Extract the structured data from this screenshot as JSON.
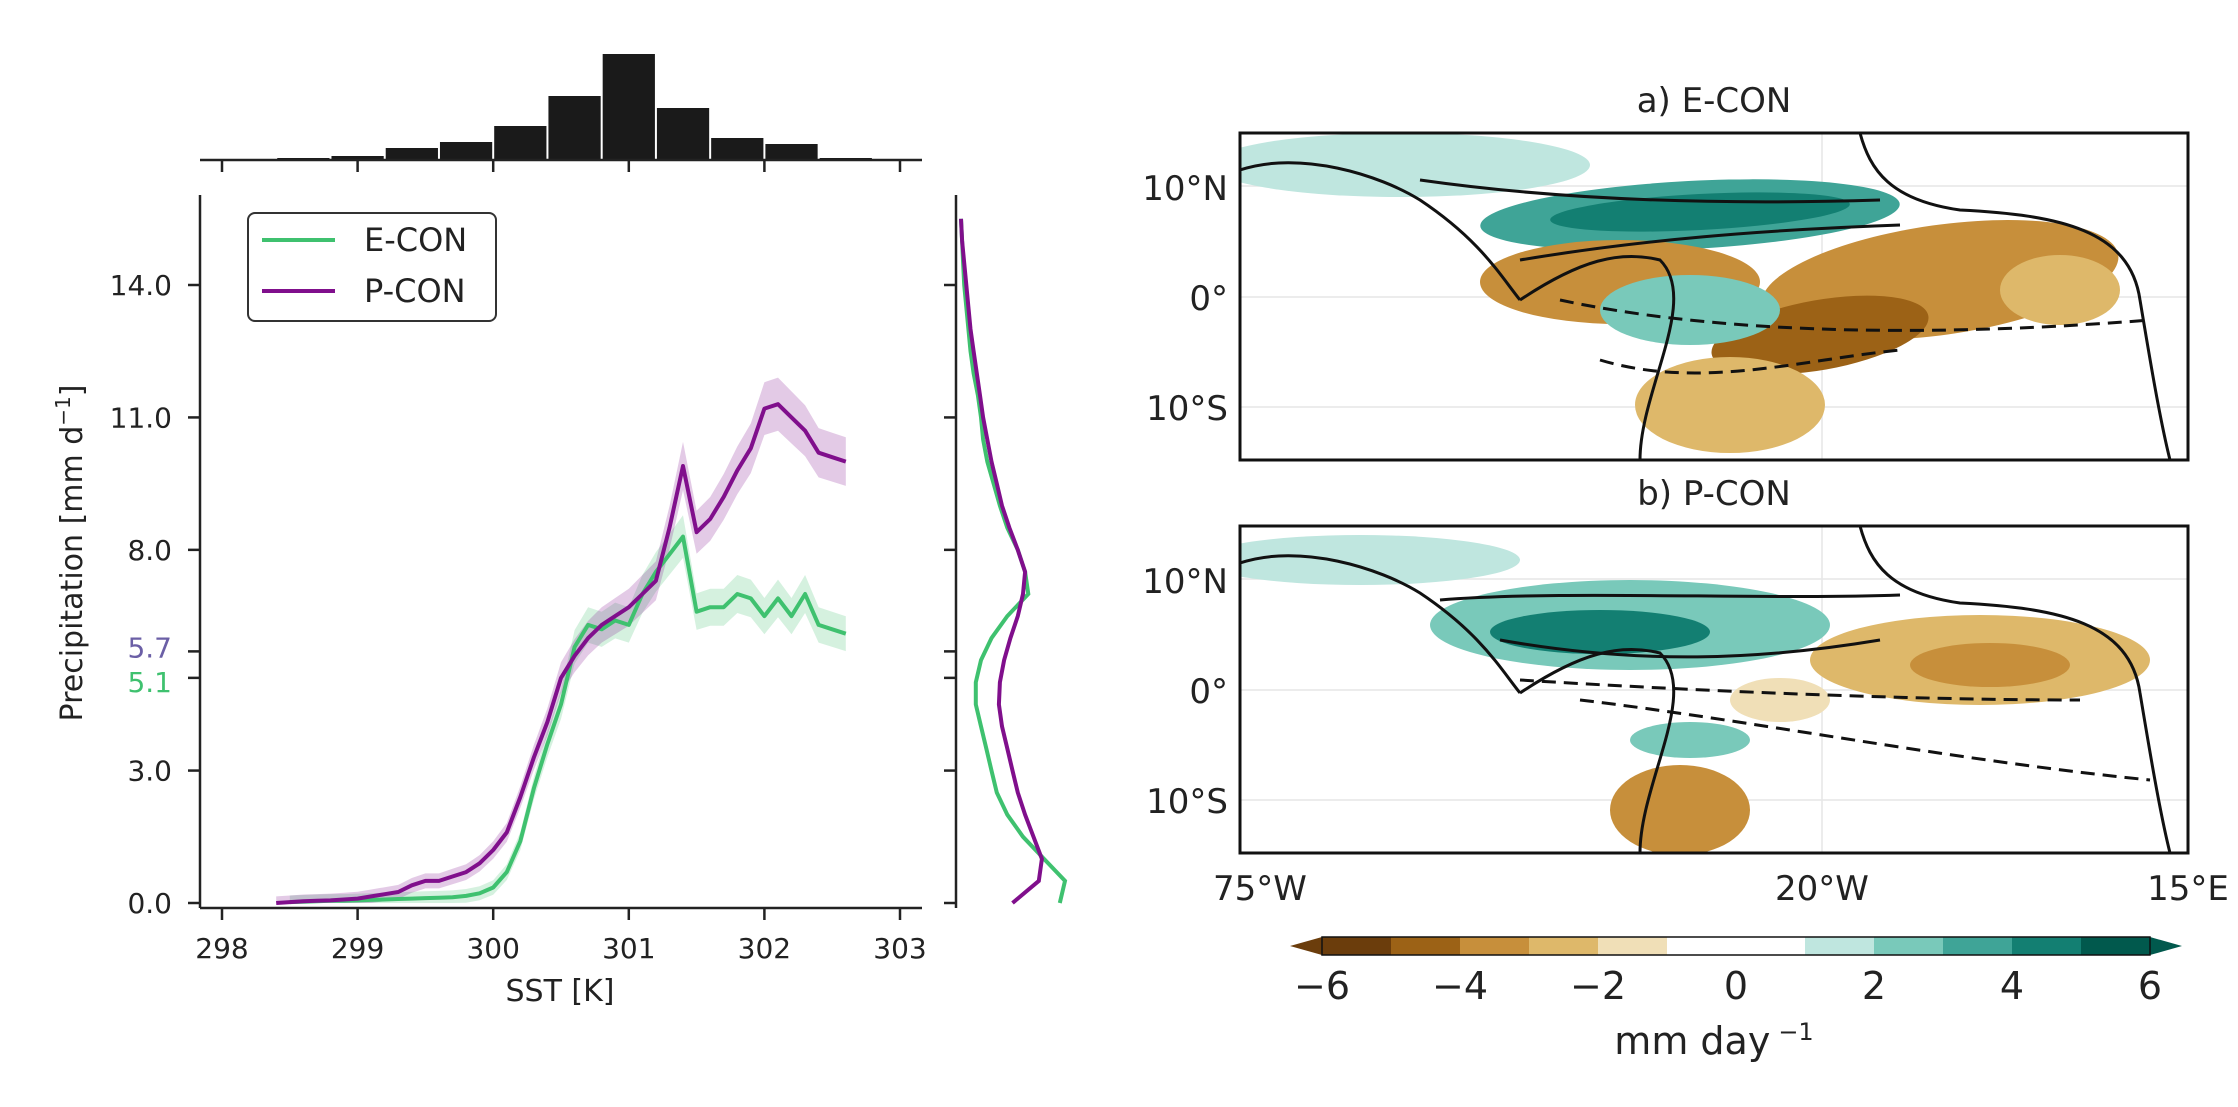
{
  "chart_data": [
    {
      "type": "line",
      "xlabel": "SST [K]",
      "ylabel": "Precipitation [mm d",
      "ylabel_sup": "−1",
      "ylabel_tail": "]",
      "xlim": [
        297.9,
        303.1
      ],
      "ylim": [
        -0.1,
        15.8
      ],
      "xticks": [
        "298",
        "299",
        "300",
        "301",
        "302",
        "303"
      ],
      "xtick_values": [
        298,
        299,
        300,
        301,
        302,
        303
      ],
      "yticks": [
        "0.0",
        "3.0",
        "8.0",
        "11.0",
        "14.0"
      ],
      "ytick_values": [
        0,
        3,
        8,
        11,
        14
      ],
      "mean_annotations": [
        {
          "label": "5.7",
          "value": 5.7,
          "color": "#6b5fa6"
        },
        {
          "label": "5.1",
          "value": 5.1,
          "color": "#3fc16f"
        }
      ],
      "legend_position": "top-left",
      "series": [
        {
          "name": "E-CON",
          "color": "#3fc16f",
          "x": [
            298.5,
            298.6,
            298.7,
            298.8,
            298.9,
            299.0,
            299.1,
            299.2,
            299.3,
            299.4,
            299.5,
            299.6,
            299.7,
            299.8,
            299.9,
            300.0,
            300.1,
            300.2,
            300.3,
            300.4,
            300.5,
            300.6,
            300.7,
            300.8,
            300.9,
            301.0,
            301.1,
            301.2,
            301.3,
            301.4,
            301.5,
            301.6,
            301.7,
            301.8,
            301.9,
            302.0,
            302.1,
            302.2,
            302.3,
            302.4,
            302.5,
            302.6
          ],
          "y": [
            0.02,
            0.03,
            0.04,
            0.05,
            0.05,
            0.06,
            0.07,
            0.08,
            0.09,
            0.1,
            0.11,
            0.12,
            0.13,
            0.16,
            0.22,
            0.35,
            0.7,
            1.4,
            2.6,
            3.6,
            4.5,
            5.8,
            6.3,
            6.2,
            6.4,
            6.3,
            7.0,
            7.5,
            7.9,
            8.3,
            6.6,
            6.7,
            6.7,
            7.0,
            6.9,
            6.5,
            6.9,
            6.5,
            7.0,
            6.3,
            6.2,
            6.1
          ]
        },
        {
          "name": "P-CON",
          "color": "#800f8c",
          "x": [
            298.4,
            298.5,
            298.6,
            298.7,
            298.8,
            298.9,
            299.0,
            299.1,
            299.2,
            299.3,
            299.4,
            299.5,
            299.6,
            299.7,
            299.8,
            299.9,
            300.0,
            300.1,
            300.2,
            300.3,
            300.4,
            300.5,
            300.6,
            300.7,
            300.8,
            300.9,
            301.0,
            301.1,
            301.2,
            301.3,
            301.4,
            301.5,
            301.6,
            301.7,
            301.8,
            301.9,
            302.0,
            302.1,
            302.2,
            302.3,
            302.4,
            302.5,
            302.6
          ],
          "y": [
            0.0,
            0.02,
            0.04,
            0.05,
            0.06,
            0.08,
            0.1,
            0.15,
            0.2,
            0.25,
            0.4,
            0.5,
            0.5,
            0.6,
            0.7,
            0.9,
            1.2,
            1.6,
            2.4,
            3.3,
            4.1,
            5.1,
            5.6,
            6.0,
            6.3,
            6.5,
            6.7,
            7.0,
            7.3,
            8.5,
            9.9,
            8.4,
            8.7,
            9.2,
            9.8,
            10.3,
            11.2,
            11.3,
            11.0,
            10.7,
            10.2,
            10.1,
            10.0
          ]
        }
      ],
      "histogram": {
        "bin_edges": [
          298.0,
          298.4,
          298.8,
          299.2,
          299.6,
          300.0,
          300.4,
          300.8,
          301.2,
          301.6,
          302.0,
          302.4,
          302.8
        ],
        "counts": [
          0.5,
          1,
          2,
          6,
          9,
          17,
          32,
          53,
          26,
          11,
          8,
          1
        ]
      },
      "marginal_density": {
        "y": [
          0,
          0.5,
          1,
          1.5,
          2,
          2.5,
          3,
          3.5,
          4,
          4.5,
          5,
          5.5,
          6,
          6.5,
          7,
          7.5,
          8,
          8.5,
          9,
          9.5,
          10,
          10.5,
          11,
          11.5,
          12,
          12.5,
          13,
          13.5,
          14,
          14.5,
          15,
          15.5
        ],
        "E-CON": [
          0.95,
          1.0,
          0.8,
          0.6,
          0.45,
          0.35,
          0.3,
          0.25,
          0.2,
          0.15,
          0.15,
          0.2,
          0.3,
          0.45,
          0.65,
          0.62,
          0.55,
          0.45,
          0.38,
          0.32,
          0.26,
          0.22,
          0.2,
          0.17,
          0.13,
          0.1,
          0.08,
          0.06,
          0.04,
          0.03,
          0.02,
          0.01
        ],
        "P-CON": [
          0.5,
          0.75,
          0.78,
          0.7,
          0.62,
          0.55,
          0.5,
          0.45,
          0.4,
          0.37,
          0.38,
          0.42,
          0.48,
          0.55,
          0.6,
          0.62,
          0.55,
          0.47,
          0.4,
          0.35,
          0.3,
          0.26,
          0.22,
          0.19,
          0.16,
          0.13,
          0.1,
          0.08,
          0.06,
          0.04,
          0.02,
          0.01
        ]
      }
    },
    {
      "type": "heatmap",
      "panels": [
        {
          "title": "a) E-CON"
        },
        {
          "title": "b) P-CON"
        }
      ],
      "lat_ticks": [
        "10°N",
        "0°",
        "10°S"
      ],
      "lon_ticks": [
        "75°W",
        "20°W",
        "15°E"
      ],
      "colorbar": {
        "ticks": [
          "−6",
          "−4",
          "−2",
          "0",
          "2",
          "4",
          "6"
        ],
        "label": "mm day",
        "label_sup": "−1",
        "colors": [
          "#6b3d0c",
          "#9c6216",
          "#c78f3b",
          "#deb86a",
          "#f0dfb7",
          "#ffffff",
          "#ffffff",
          "#bfe6df",
          "#79c9ba",
          "#3fa497",
          "#137f72",
          "#01594d"
        ]
      }
    }
  ]
}
